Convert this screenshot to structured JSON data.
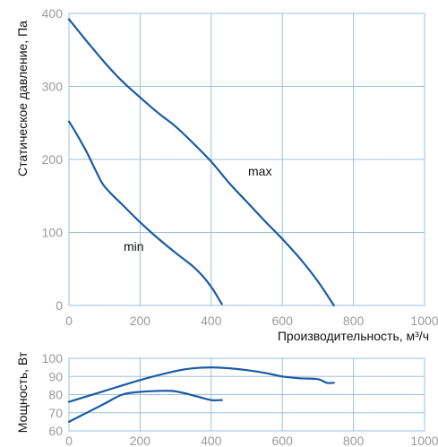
{
  "colors": {
    "curve": "#1b5ba3",
    "grid": "#9dc0de",
    "tick": "#9a9a9a"
  },
  "chart_data": [
    {
      "type": "line",
      "ylabel": "Статическое давление, Па",
      "xlabel": "Производительность, м³/ч",
      "xlim": [
        0,
        1000
      ],
      "ylim": [
        0,
        400
      ],
      "xticks": [
        "0",
        "200",
        "400",
        "600",
        "800",
        "1000"
      ],
      "yticks": [
        "0",
        "100",
        "200",
        "300",
        "400"
      ],
      "grid": true,
      "series": [
        {
          "name": "max",
          "x": [
            0,
            50,
            100,
            150,
            200,
            250,
            300,
            350,
            400,
            450,
            500,
            550,
            600,
            650,
            700,
            745
          ],
          "y": [
            392,
            362,
            333,
            307,
            285,
            264,
            245,
            222,
            197,
            168,
            142,
            116,
            91,
            64,
            33,
            0
          ]
        },
        {
          "name": "min",
          "x": [
            0,
            25,
            50,
            75,
            100,
            150,
            200,
            250,
            300,
            350,
            380,
            405,
            420,
            430
          ],
          "y": [
            252,
            232,
            210,
            185,
            163,
            138,
            114,
            92,
            72,
            53,
            38,
            22,
            10,
            2
          ]
        }
      ]
    },
    {
      "type": "line",
      "ylabel": "Мощность, Вт",
      "xlabel": "",
      "xlim": [
        0,
        1000
      ],
      "ylim": [
        60,
        100
      ],
      "xticks": [
        "0",
        "200",
        "400",
        "600",
        "800",
        "1000"
      ],
      "yticks": [
        "60",
        "70",
        "80",
        "90",
        "100"
      ],
      "grid": true,
      "series": [
        {
          "name": "",
          "x": [
            0,
            100,
            200,
            300,
            350,
            400,
            450,
            500,
            550,
            600,
            650,
            700,
            725,
            745
          ],
          "y": [
            76,
            82,
            88,
            93,
            94.5,
            95,
            94.5,
            93.5,
            92,
            90,
            89,
            88.5,
            86.5,
            86.5
          ]
        },
        {
          "name": "",
          "x": [
            0,
            50,
            100,
            150,
            200,
            250,
            290,
            320,
            360,
            400,
            430
          ],
          "y": [
            65,
            70,
            75,
            80,
            81.5,
            82,
            82,
            81,
            79,
            77,
            77
          ]
        }
      ]
    }
  ]
}
